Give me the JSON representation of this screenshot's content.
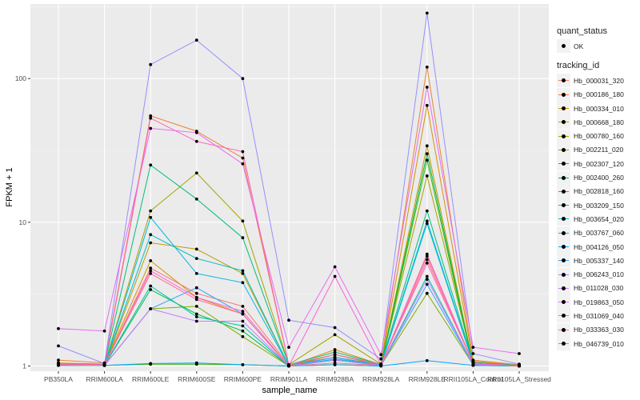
{
  "chart_data": {
    "type": "line",
    "xlabel": "sample_name",
    "ylabel": "FPKM + 1",
    "y_scale": "log10",
    "ylim": [
      0.92,
      330
    ],
    "y_ticks": [
      1,
      10,
      100
    ],
    "y_tick_labels": [
      "1",
      "10",
      "100"
    ],
    "categories": [
      "PB350LA",
      "RRIM600LA",
      "RRIM600LE",
      "RRIM600SE",
      "RRIM600PE",
      "RRIM901LA",
      "RRIM928BA",
      "RRIM928LA",
      "RRIM928LE",
      "RRII105LA_Control",
      "RRII105LA_Stressed"
    ],
    "grid": true,
    "legend_position": "right",
    "point_legend": {
      "title": "quant_status",
      "items": [
        "OK"
      ]
    },
    "series_legend_title": "tracking_id",
    "series": [
      {
        "name": "Hb_000031_320",
        "color": "#F8766D",
        "values": [
          1.05,
          1.02,
          4.8,
          3.2,
          2.6,
          1.02,
          1.15,
          1.02,
          5.8,
          1.05,
          1.0
        ]
      },
      {
        "name": "Hb_000186_180",
        "color": "#EA8331",
        "values": [
          1.1,
          1.05,
          55,
          43,
          28,
          1.02,
          1.2,
          1.03,
          120,
          1.1,
          1.02
        ]
      },
      {
        "name": "Hb_000334_010",
        "color": "#D89000",
        "values": [
          1.05,
          1.03,
          5.4,
          3.0,
          2.3,
          1.0,
          1.3,
          1.02,
          65,
          1.08,
          1.01
        ]
      },
      {
        "name": "Hb_000668_180",
        "color": "#C09B00",
        "values": [
          1.02,
          1.01,
          7.2,
          6.5,
          4.4,
          1.0,
          1.1,
          1.01,
          34,
          1.03,
          1.0
        ]
      },
      {
        "name": "Hb_000780_160",
        "color": "#A3A500",
        "values": [
          1.03,
          1.02,
          12.0,
          22.0,
          10.2,
          1.02,
          1.65,
          1.03,
          21,
          1.05,
          1.01
        ]
      },
      {
        "name": "Hb_002211_020",
        "color": "#7CAE00",
        "values": [
          1.02,
          1.01,
          2.5,
          2.6,
          1.6,
          1.0,
          1.2,
          1.01,
          3.2,
          1.02,
          1.0
        ]
      },
      {
        "name": "Hb_002307_120",
        "color": "#39B600",
        "values": [
          1.01,
          1.01,
          1.03,
          1.03,
          1.02,
          1.0,
          1.02,
          1.0,
          27,
          1.01,
          1.0
        ]
      },
      {
        "name": "Hb_002400_260",
        "color": "#00BB4E",
        "values": [
          1.02,
          1.01,
          3.4,
          2.3,
          1.75,
          1.0,
          1.1,
          1.01,
          30,
          1.02,
          1.0
        ]
      },
      {
        "name": "Hb_002818_160",
        "color": "#00BF7D",
        "values": [
          1.04,
          1.03,
          25.0,
          14.5,
          7.8,
          1.02,
          1.25,
          1.03,
          12,
          1.06,
          1.01
        ]
      },
      {
        "name": "Hb_003209_150",
        "color": "#00C1A3",
        "values": [
          1.02,
          1.01,
          3.6,
          2.2,
          1.9,
          1.0,
          1.15,
          1.01,
          4.2,
          1.03,
          1.0
        ]
      },
      {
        "name": "Hb_003654_020",
        "color": "#00BFC4",
        "values": [
          1.02,
          1.01,
          8.2,
          5.6,
          4.6,
          1.0,
          1.1,
          1.01,
          9.8,
          1.04,
          1.0
        ]
      },
      {
        "name": "Hb_003767_060",
        "color": "#00B8E7",
        "values": [
          1.02,
          1.01,
          10.8,
          4.4,
          3.8,
          1.0,
          1.12,
          1.02,
          10.2,
          1.05,
          1.0
        ]
      },
      {
        "name": "Hb_004126_050",
        "color": "#00A9FF",
        "values": [
          1.01,
          1.01,
          1.04,
          1.05,
          1.02,
          1.0,
          1.02,
          1.0,
          1.09,
          1.01,
          1.0
        ]
      },
      {
        "name": "Hb_005337_140",
        "color": "#35A2FF",
        "values": [
          1.02,
          1.01,
          2.5,
          3.5,
          2.3,
          1.0,
          1.15,
          1.01,
          3.7,
          1.02,
          1.0
        ]
      },
      {
        "name": "Hb_006243_010",
        "color": "#9590FF",
        "values": [
          1.38,
          1.04,
          125,
          185,
          100,
          2.08,
          1.85,
          1.12,
          285,
          1.22,
          1.03
        ]
      },
      {
        "name": "Hb_011028_030",
        "color": "#C77CFF",
        "values": [
          1.02,
          1.01,
          2.5,
          2.05,
          2.05,
          1.0,
          1.1,
          1.01,
          4.0,
          1.03,
          1.0
        ]
      },
      {
        "name": "Hb_019863_050",
        "color": "#E76BF3",
        "values": [
          1.82,
          1.75,
          45.0,
          42.0,
          25.5,
          1.35,
          4.9,
          1.2,
          87,
          1.35,
          1.22
        ]
      },
      {
        "name": "Hb_031069_040",
        "color": "#FA62DB",
        "values": [
          1.02,
          1.01,
          4.6,
          3.0,
          2.4,
          1.0,
          4.2,
          1.02,
          6.0,
          1.04,
          1.0
        ]
      },
      {
        "name": "Hb_033363_030",
        "color": "#FF62BC",
        "values": [
          1.04,
          1.02,
          53.0,
          36.5,
          31.0,
          1.02,
          1.2,
          1.03,
          5.2,
          1.05,
          1.0
        ]
      },
      {
        "name": "Hb_046739_010",
        "color": "#FF6C91",
        "values": [
          1.03,
          1.02,
          4.4,
          2.9,
          2.3,
          1.0,
          1.05,
          1.01,
          5.5,
          1.05,
          1.0
        ]
      }
    ]
  }
}
